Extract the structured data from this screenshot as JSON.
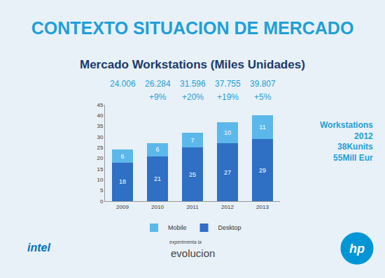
{
  "chart_data": {
    "type": "bar",
    "title": "CONTEXTO SITUACION DE MERCADO",
    "subtitle": "Mercado Workstations (Miles Unidades)",
    "categories": [
      "2009",
      "2010",
      "2011",
      "2012",
      "2013"
    ],
    "series": [
      {
        "name": "Desktop",
        "color": "#2f6fc4",
        "values": [
          18,
          21,
          25,
          27,
          29
        ]
      },
      {
        "name": "Mobile",
        "color": "#5cb8ea",
        "values": [
          6,
          6,
          7,
          10,
          11
        ]
      }
    ],
    "stacked": true,
    "data_labels": true,
    "ylim": [
      0,
      45
    ],
    "yticks": [
      0,
      5,
      10,
      15,
      20,
      25,
      30,
      35,
      40,
      45
    ],
    "grid": false,
    "legend": "bottom",
    "totals": [
      {
        "value": 24.006,
        "label": "24.006"
      },
      {
        "value": 26.284,
        "label": "26.284"
      },
      {
        "value": 31.596,
        "label": "31.596"
      },
      {
        "value": 37.755,
        "label": "37.755"
      },
      {
        "value": 39.807,
        "label": "39.807"
      }
    ],
    "change_labels": [
      null,
      "+9%",
      "+20%",
      "+19%",
      "+5%"
    ],
    "side_note": [
      "Workstations",
      "2012",
      "38Kunits",
      "55Mill Eur"
    ],
    "footer": [
      "intel",
      "experimenta la",
      "evolucion",
      "hp"
    ]
  }
}
